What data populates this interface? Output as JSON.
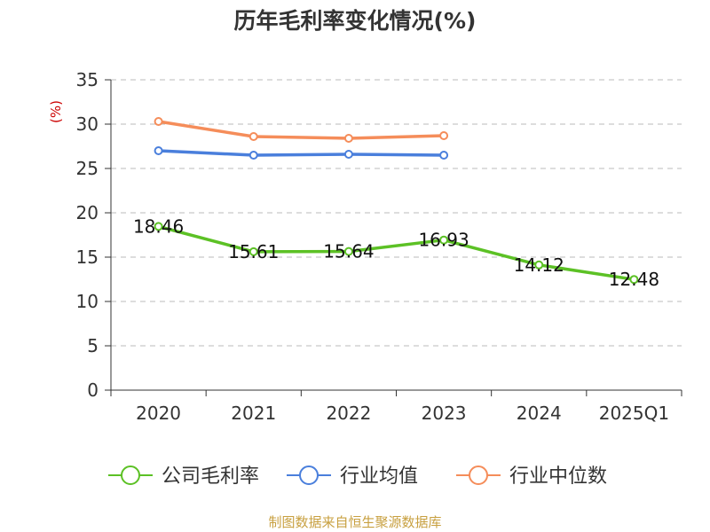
{
  "chart_data": {
    "type": "line",
    "title": "历年毛利率变化情况(%)",
    "ylabel": "(%)",
    "categories": [
      "2020",
      "2021",
      "2022",
      "2023",
      "2024",
      "2025Q1"
    ],
    "yticks": [
      0,
      5,
      10,
      15,
      20,
      25,
      30,
      35
    ],
    "ylim": [
      0,
      35
    ],
    "grid": true,
    "legend_position": "bottom",
    "series": [
      {
        "name": "公司毛利率",
        "color": "#5cc125",
        "values": [
          18.46,
          15.61,
          15.64,
          16.93,
          14.12,
          12.48
        ],
        "labels": [
          "18.46",
          "15.61",
          "15.64",
          "16.93",
          "14.12",
          "12.48"
        ]
      },
      {
        "name": "行业均值",
        "color": "#4a7fdc",
        "values": [
          27.0,
          26.5,
          26.6,
          26.5,
          null,
          null
        ]
      },
      {
        "name": "行业中位数",
        "color": "#f58d5a",
        "values": [
          30.3,
          28.6,
          28.4,
          28.7,
          null,
          null
        ]
      }
    ],
    "source": "制图数据来自恒生聚源数据库"
  }
}
